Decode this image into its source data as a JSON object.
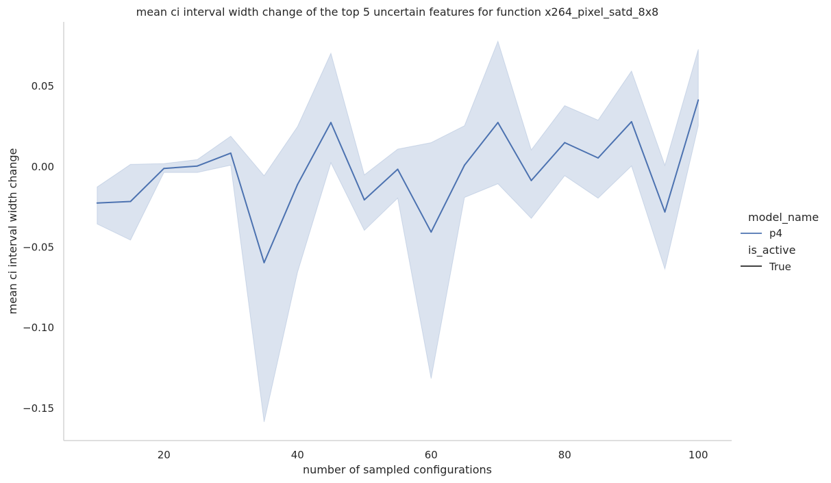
{
  "chart_data": {
    "type": "line",
    "title": "mean ci interval width change of the top 5 uncertain features for function x264_pixel_satd_8x8",
    "xlabel": "number of sampled configurations",
    "ylabel": "mean ci interval width change",
    "xlim": [
      5,
      105
    ],
    "ylim": [
      -0.17,
      0.09
    ],
    "xticks": [
      20,
      40,
      60,
      80,
      100
    ],
    "xtick_labels": [
      "20",
      "40",
      "60",
      "80",
      "100"
    ],
    "yticks": [
      0.05,
      0.0,
      -0.05,
      -0.1,
      -0.15
    ],
    "ytick_labels": [
      "0.05",
      "0.00",
      "−0.05",
      "−0.10",
      "−0.15"
    ],
    "grid": false,
    "legend_position": "right",
    "legend": [
      {
        "title": "model_name",
        "items": [
          {
            "label": "p4",
            "color": "#4c72b0"
          }
        ]
      },
      {
        "title": "is_active",
        "items": [
          {
            "label": "True",
            "color": "#262626"
          }
        ]
      }
    ],
    "series": [
      {
        "name": "p4",
        "color": "#4c72b0",
        "x": [
          10,
          15,
          20,
          25,
          30,
          35,
          40,
          45,
          50,
          55,
          60,
          65,
          70,
          75,
          80,
          85,
          90,
          95,
          100
        ],
        "y": [
          -0.0225,
          -0.0215,
          -0.001,
          0.0005,
          0.0085,
          -0.0595,
          -0.011,
          0.0275,
          -0.0205,
          -0.0015,
          -0.0405,
          0.001,
          0.0275,
          -0.0085,
          0.015,
          0.0055,
          0.028,
          -0.028,
          0.0415
        ],
        "ci_lower": [
          -0.0355,
          -0.0455,
          -0.0035,
          -0.0035,
          0.001,
          -0.1585,
          -0.0655,
          0.0025,
          -0.0395,
          -0.0195,
          -0.1315,
          -0.019,
          -0.0105,
          -0.032,
          -0.0055,
          -0.0195,
          0.0005,
          -0.0635,
          0.0255
        ],
        "ci_upper": [
          -0.0125,
          0.0015,
          0.002,
          0.0045,
          0.019,
          -0.0055,
          0.025,
          0.0705,
          -0.005,
          0.011,
          0.015,
          0.0255,
          0.078,
          0.0105,
          0.038,
          0.029,
          0.0595,
          0.001,
          0.073
        ]
      }
    ]
  }
}
